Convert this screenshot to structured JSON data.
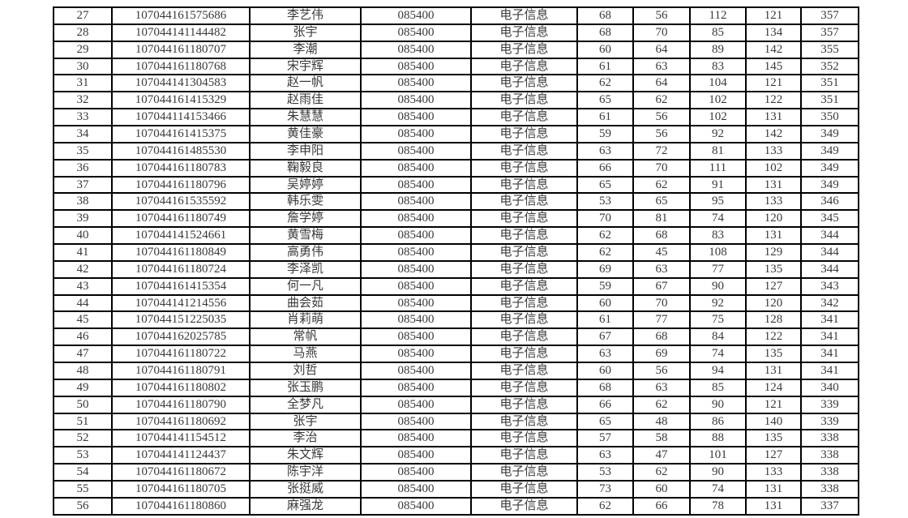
{
  "table": {
    "fields": [
      "row_no",
      "candidate_id",
      "name",
      "major_code",
      "major_name",
      "score_1",
      "score_2",
      "score_3",
      "score_4",
      "total_score"
    ],
    "rows": [
      [
        27,
        "107044161575686",
        "李艺伟",
        "085400",
        "电子信息",
        68,
        56,
        112,
        121,
        357
      ],
      [
        28,
        "107044141144482",
        "张宇",
        "085400",
        "电子信息",
        68,
        70,
        85,
        134,
        357
      ],
      [
        29,
        "107044161180707",
        "李潮",
        "085400",
        "电子信息",
        60,
        64,
        89,
        142,
        355
      ],
      [
        30,
        "107044161180768",
        "宋宇辉",
        "085400",
        "电子信息",
        61,
        63,
        83,
        145,
        352
      ],
      [
        31,
        "107044141304583",
        "赵一帆",
        "085400",
        "电子信息",
        62,
        64,
        104,
        121,
        351
      ],
      [
        32,
        "107044161415329",
        "赵雨佳",
        "085400",
        "电子信息",
        65,
        62,
        102,
        122,
        351
      ],
      [
        33,
        "107044114153466",
        "朱慧慧",
        "085400",
        "电子信息",
        61,
        56,
        102,
        131,
        350
      ],
      [
        34,
        "107044161415375",
        "黄佳豪",
        "085400",
        "电子信息",
        59,
        56,
        92,
        142,
        349
      ],
      [
        35,
        "107044161485530",
        "李申阳",
        "085400",
        "电子信息",
        63,
        72,
        81,
        133,
        349
      ],
      [
        36,
        "107044161180783",
        "鞠毅良",
        "085400",
        "电子信息",
        66,
        70,
        111,
        102,
        349
      ],
      [
        37,
        "107044161180796",
        "吴婷婷",
        "085400",
        "电子信息",
        65,
        62,
        91,
        131,
        349
      ],
      [
        38,
        "107044161535592",
        "韩乐雯",
        "085400",
        "电子信息",
        53,
        65,
        95,
        133,
        346
      ],
      [
        39,
        "107044161180749",
        "詹学婷",
        "085400",
        "电子信息",
        70,
        81,
        74,
        120,
        345
      ],
      [
        40,
        "107044141524661",
        "黄雪梅",
        "085400",
        "电子信息",
        62,
        68,
        83,
        131,
        344
      ],
      [
        41,
        "107044161180849",
        "高勇伟",
        "085400",
        "电子信息",
        62,
        45,
        108,
        129,
        344
      ],
      [
        42,
        "107044161180724",
        "李泽凯",
        "085400",
        "电子信息",
        69,
        63,
        77,
        135,
        344
      ],
      [
        43,
        "107044161415354",
        "何一凡",
        "085400",
        "电子信息",
        59,
        67,
        90,
        127,
        343
      ],
      [
        44,
        "107044141214556",
        "曲会茹",
        "085400",
        "电子信息",
        60,
        70,
        92,
        120,
        342
      ],
      [
        45,
        "107044151225035",
        "肖莉萌",
        "085400",
        "电子信息",
        61,
        77,
        75,
        128,
        341
      ],
      [
        46,
        "107044162025785",
        "常帆",
        "085400",
        "电子信息",
        67,
        68,
        84,
        122,
        341
      ],
      [
        47,
        "107044161180722",
        "马燕",
        "085400",
        "电子信息",
        63,
        69,
        74,
        135,
        341
      ],
      [
        48,
        "107044161180791",
        "刘哲",
        "085400",
        "电子信息",
        60,
        56,
        94,
        131,
        341
      ],
      [
        49,
        "107044161180802",
        "张玉鹏",
        "085400",
        "电子信息",
        68,
        63,
        85,
        124,
        340
      ],
      [
        50,
        "107044161180790",
        "全梦凡",
        "085400",
        "电子信息",
        66,
        62,
        90,
        121,
        339
      ],
      [
        51,
        "107044161180692",
        "张宇",
        "085400",
        "电子信息",
        65,
        48,
        86,
        140,
        339
      ],
      [
        52,
        "107044141154512",
        "李治",
        "085400",
        "电子信息",
        57,
        58,
        88,
        135,
        338
      ],
      [
        53,
        "107044141124437",
        "朱文辉",
        "085400",
        "电子信息",
        63,
        47,
        101,
        127,
        338
      ],
      [
        54,
        "107044161180672",
        "陈宇洋",
        "085400",
        "电子信息",
        53,
        62,
        90,
        133,
        338
      ],
      [
        55,
        "107044161180705",
        "张挺威",
        "085400",
        "电子信息",
        73,
        60,
        74,
        131,
        338
      ],
      [
        56,
        "107044161180860",
        "麻强龙",
        "085400",
        "电子信息",
        62,
        66,
        78,
        131,
        337
      ]
    ]
  },
  "colors": {
    "border": "#000000",
    "text": "#3a3a3a",
    "background": "#ffffff"
  }
}
